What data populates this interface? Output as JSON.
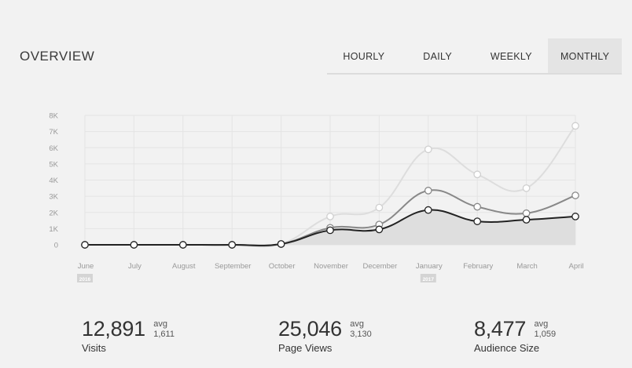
{
  "header": {
    "title": "OVERVIEW",
    "tabs": [
      {
        "label": "HOURLY",
        "active": false
      },
      {
        "label": "DAILY",
        "active": false
      },
      {
        "label": "WEEKLY",
        "active": false
      },
      {
        "label": "MONTHLY",
        "active": true
      }
    ]
  },
  "chart_data": {
    "type": "line",
    "categories": [
      "June",
      "July",
      "August",
      "September",
      "October",
      "November",
      "December",
      "January",
      "February",
      "March",
      "April"
    ],
    "year_labels": [
      {
        "at": "June",
        "text": "2016"
      },
      {
        "at": "January",
        "text": "2017"
      }
    ],
    "y_ticks": [
      "0",
      "1K",
      "2K",
      "3K",
      "4K",
      "5K",
      "6K",
      "7K",
      "8K"
    ],
    "ylim": [
      0,
      8000
    ],
    "grid": true,
    "series": [
      {
        "color": "#dddddd",
        "values": [
          0,
          0,
          0,
          0,
          50,
          1750,
          2300,
          5900,
          4350,
          3500,
          7350
        ]
      },
      {
        "color": "#888888",
        "values": [
          0,
          0,
          0,
          0,
          50,
          1050,
          1250,
          3350,
          2350,
          1950,
          3050
        ]
      },
      {
        "color": "#222222",
        "fill": "#dedede",
        "values": [
          0,
          0,
          0,
          0,
          50,
          900,
          950,
          2150,
          1450,
          1550,
          1750
        ]
      }
    ]
  },
  "stats": [
    {
      "value": "12,891",
      "avg_label": "avg",
      "avg_value": "1,611",
      "label": "Visits"
    },
    {
      "value": "25,046",
      "avg_label": "avg",
      "avg_value": "3,130",
      "label": "Page Views"
    },
    {
      "value": "8,477",
      "avg_label": "avg",
      "avg_value": "1,059",
      "label": "Audience Size"
    }
  ]
}
